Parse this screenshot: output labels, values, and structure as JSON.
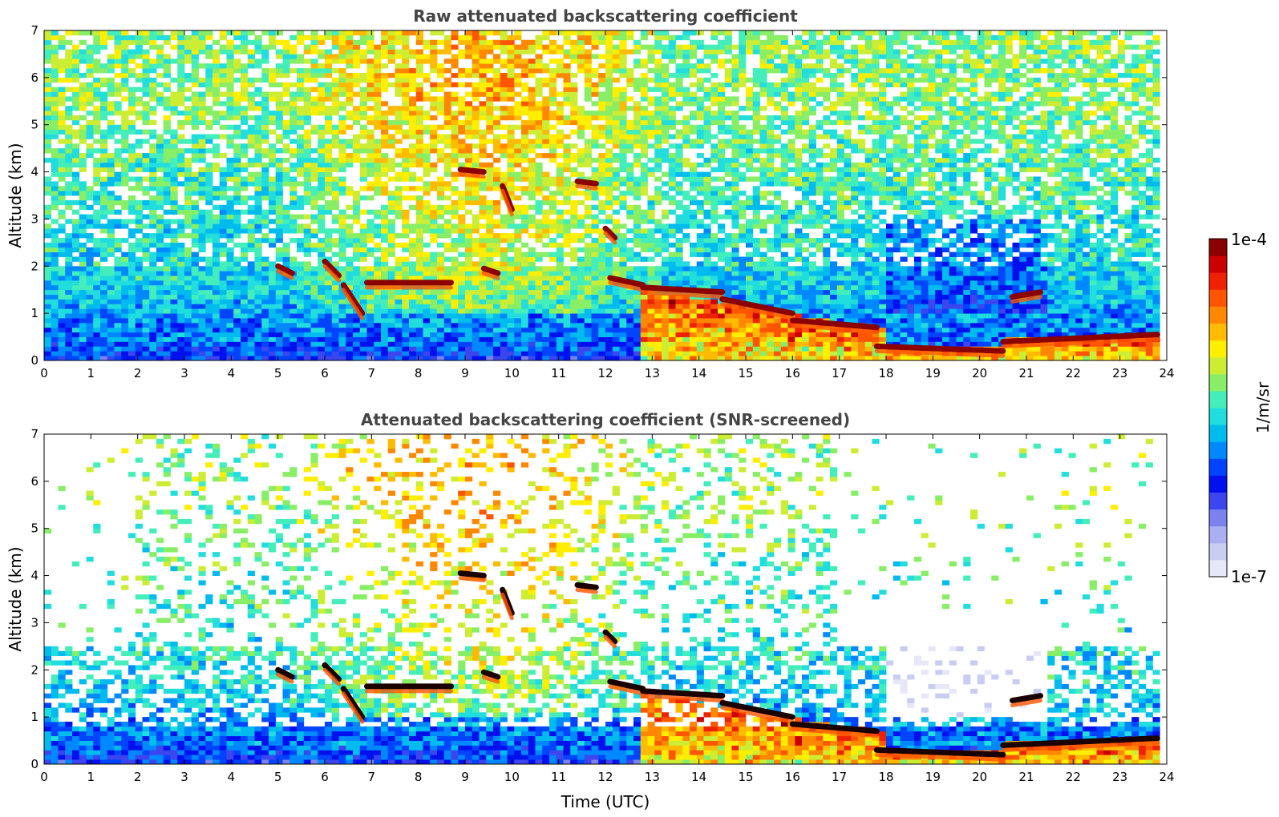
{
  "chart_data": [
    {
      "type": "heatmap",
      "title": "Raw attenuated backscattering coefficient",
      "xlabel": "",
      "ylabel": "Altitude (km)",
      "xlim": [
        0,
        24
      ],
      "ylim": [
        0,
        7
      ],
      "xticks": [
        "0",
        "1",
        "2",
        "3",
        "4",
        "5",
        "6",
        "7",
        "8",
        "9",
        "10",
        "11",
        "12",
        "13",
        "14",
        "15",
        "16",
        "17",
        "18",
        "19",
        "20",
        "21",
        "22",
        "23",
        "24"
      ],
      "yticks": [
        "0",
        "1",
        "2",
        "3",
        "4",
        "5",
        "6",
        "7"
      ],
      "features": [
        {
          "x": [
            5.0,
            5.3
          ],
          "y": [
            2.0,
            1.85
          ]
        },
        {
          "x": [
            6.0,
            6.3
          ],
          "y": [
            2.1,
            1.8
          ]
        },
        {
          "x": [
            6.4,
            6.8
          ],
          "y": [
            1.6,
            1.0
          ]
        },
        {
          "x": [
            6.9,
            8.7
          ],
          "y": [
            1.65,
            1.65
          ]
        },
        {
          "x": [
            9.4,
            9.7
          ],
          "y": [
            1.95,
            1.85
          ]
        },
        {
          "x": [
            8.9,
            9.4
          ],
          "y": [
            4.05,
            4.0
          ]
        },
        {
          "x": [
            9.8,
            10.0
          ],
          "y": [
            3.7,
            3.2
          ]
        },
        {
          "x": [
            11.4,
            11.8
          ],
          "y": [
            3.8,
            3.75
          ]
        },
        {
          "x": [
            12.0,
            12.2
          ],
          "y": [
            2.8,
            2.6
          ]
        },
        {
          "x": [
            12.1,
            12.8
          ],
          "y": [
            1.75,
            1.6
          ]
        },
        {
          "x": [
            12.8,
            14.5
          ],
          "y": [
            1.55,
            1.45
          ]
        },
        {
          "x": [
            14.5,
            16.0
          ],
          "y": [
            1.3,
            1.0
          ]
        },
        {
          "x": [
            16.0,
            17.8
          ],
          "y": [
            0.85,
            0.7
          ]
        },
        {
          "x": [
            17.8,
            20.5
          ],
          "y": [
            0.3,
            0.2
          ]
        },
        {
          "x": [
            20.5,
            23.8
          ],
          "y": [
            0.4,
            0.55
          ]
        },
        {
          "x": [
            20.7,
            21.3
          ],
          "y": [
            1.35,
            1.45
          ]
        }
      ]
    },
    {
      "type": "heatmap",
      "title": "Attenuated backscattering coefficient (SNR-screened)",
      "xlabel": "Time (UTC)",
      "ylabel": "Altitude (km)",
      "xlim": [
        0,
        24
      ],
      "ylim": [
        0,
        7
      ],
      "xticks": [
        "0",
        "1",
        "2",
        "3",
        "4",
        "5",
        "6",
        "7",
        "8",
        "9",
        "10",
        "11",
        "12",
        "13",
        "14",
        "15",
        "16",
        "17",
        "18",
        "19",
        "20",
        "21",
        "22",
        "23",
        "24"
      ],
      "yticks": [
        "0",
        "1",
        "2",
        "3",
        "4",
        "5",
        "6",
        "7"
      ]
    }
  ],
  "colorbar": {
    "label": "1/m/sr",
    "max_label": "1e-4",
    "min_label": "1e-7",
    "min": 1e-07,
    "max": 0.0001,
    "scale": "log",
    "colors": [
      "#e6e8f8",
      "#c9cdf2",
      "#a9aff0",
      "#7b82ee",
      "#3c45ee",
      "#0011ee",
      "#0044ff",
      "#0088ff",
      "#00bbee",
      "#22dddd",
      "#44eebb",
      "#88ee66",
      "#cced33",
      "#ffee00",
      "#ffbb00",
      "#ff8800",
      "#ff5500",
      "#ee2200",
      "#cc0000",
      "#8b0000"
    ]
  }
}
